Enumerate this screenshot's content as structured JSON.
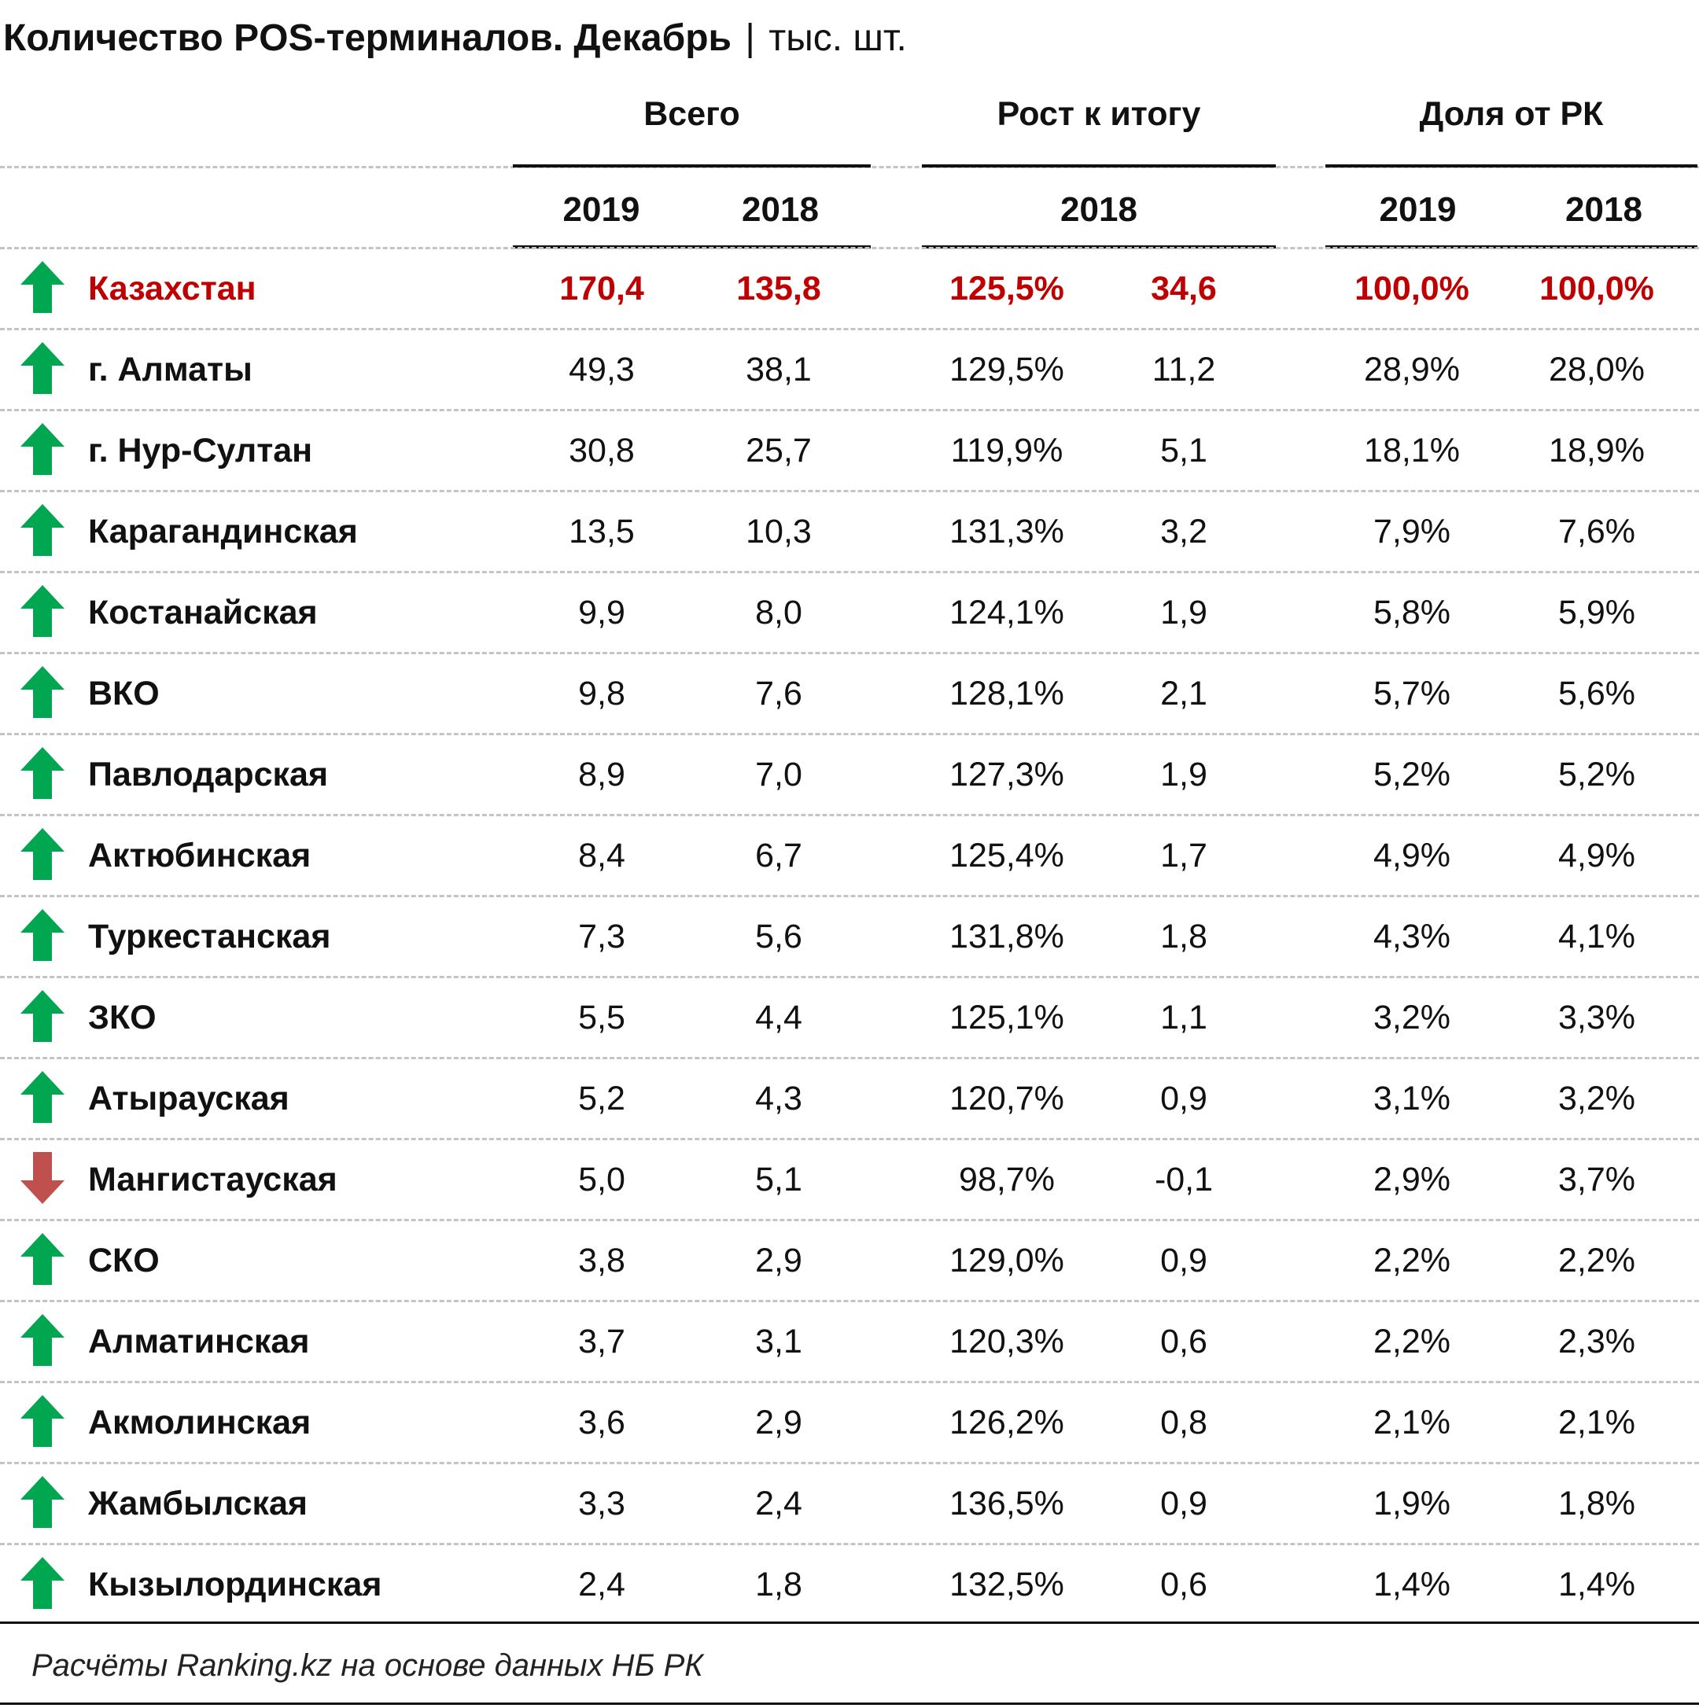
{
  "title": "Количество POS-терминалов. Декабрь",
  "title_sep": "|",
  "title_unit": "тыс. шт.",
  "source": "Расчёты Ranking.kz на основе данных НБ РК",
  "colors": {
    "up": "#00a650",
    "down": "#c0504d",
    "total": "#c00000"
  },
  "chart_data": {
    "type": "table",
    "column_groups": [
      {
        "label": "Всего",
        "years": [
          "2019",
          "2018"
        ]
      },
      {
        "label": "Рост к итогу",
        "years": [
          "2018"
        ]
      },
      {
        "label": "Доля от РК",
        "years": [
          "2019",
          "2018"
        ]
      }
    ],
    "columns": [
      "total_2019",
      "total_2018",
      "growth_pct",
      "growth_abs",
      "share_2019",
      "share_2018"
    ],
    "rows": [
      {
        "name": "Казахстан",
        "trend": "up",
        "total": true,
        "values": [
          "170,4",
          "135,8",
          "125,5%",
          "34,6",
          "100,0%",
          "100,0%"
        ]
      },
      {
        "name": "г. Алматы",
        "trend": "up",
        "values": [
          "49,3",
          "38,1",
          "129,5%",
          "11,2",
          "28,9%",
          "28,0%"
        ]
      },
      {
        "name": "г. Нур-Султан",
        "trend": "up",
        "values": [
          "30,8",
          "25,7",
          "119,9%",
          "5,1",
          "18,1%",
          "18,9%"
        ]
      },
      {
        "name": "Карагандинская",
        "trend": "up",
        "values": [
          "13,5",
          "10,3",
          "131,3%",
          "3,2",
          "7,9%",
          "7,6%"
        ]
      },
      {
        "name": "Костанайская",
        "trend": "up",
        "values": [
          "9,9",
          "8,0",
          "124,1%",
          "1,9",
          "5,8%",
          "5,9%"
        ]
      },
      {
        "name": "ВКО",
        "trend": "up",
        "values": [
          "9,8",
          "7,6",
          "128,1%",
          "2,1",
          "5,7%",
          "5,6%"
        ]
      },
      {
        "name": "Павлодарская",
        "trend": "up",
        "values": [
          "8,9",
          "7,0",
          "127,3%",
          "1,9",
          "5,2%",
          "5,2%"
        ]
      },
      {
        "name": "Актюбинская",
        "trend": "up",
        "values": [
          "8,4",
          "6,7",
          "125,4%",
          "1,7",
          "4,9%",
          "4,9%"
        ]
      },
      {
        "name": "Туркестанская",
        "trend": "up",
        "values": [
          "7,3",
          "5,6",
          "131,8%",
          "1,8",
          "4,3%",
          "4,1%"
        ]
      },
      {
        "name": "ЗКО",
        "trend": "up",
        "values": [
          "5,5",
          "4,4",
          "125,1%",
          "1,1",
          "3,2%",
          "3,3%"
        ]
      },
      {
        "name": "Атырауская",
        "trend": "up",
        "values": [
          "5,2",
          "4,3",
          "120,7%",
          "0,9",
          "3,1%",
          "3,2%"
        ]
      },
      {
        "name": "Мангистауская",
        "trend": "down",
        "values": [
          "5,0",
          "5,1",
          "98,7%",
          "-0,1",
          "2,9%",
          "3,7%"
        ]
      },
      {
        "name": "СКО",
        "trend": "up",
        "values": [
          "3,8",
          "2,9",
          "129,0%",
          "0,9",
          "2,2%",
          "2,2%"
        ]
      },
      {
        "name": "Алматинская",
        "trend": "up",
        "values": [
          "3,7",
          "3,1",
          "120,3%",
          "0,6",
          "2,2%",
          "2,3%"
        ]
      },
      {
        "name": "Акмолинская",
        "trend": "up",
        "values": [
          "3,6",
          "2,9",
          "126,2%",
          "0,8",
          "2,1%",
          "2,1%"
        ]
      },
      {
        "name": "Жамбылская",
        "trend": "up",
        "values": [
          "3,3",
          "2,4",
          "136,5%",
          "0,9",
          "1,9%",
          "1,8%"
        ]
      },
      {
        "name": "Кызылординская",
        "trend": "up",
        "values": [
          "2,4",
          "1,8",
          "132,5%",
          "0,6",
          "1,4%",
          "1,4%"
        ]
      }
    ]
  }
}
